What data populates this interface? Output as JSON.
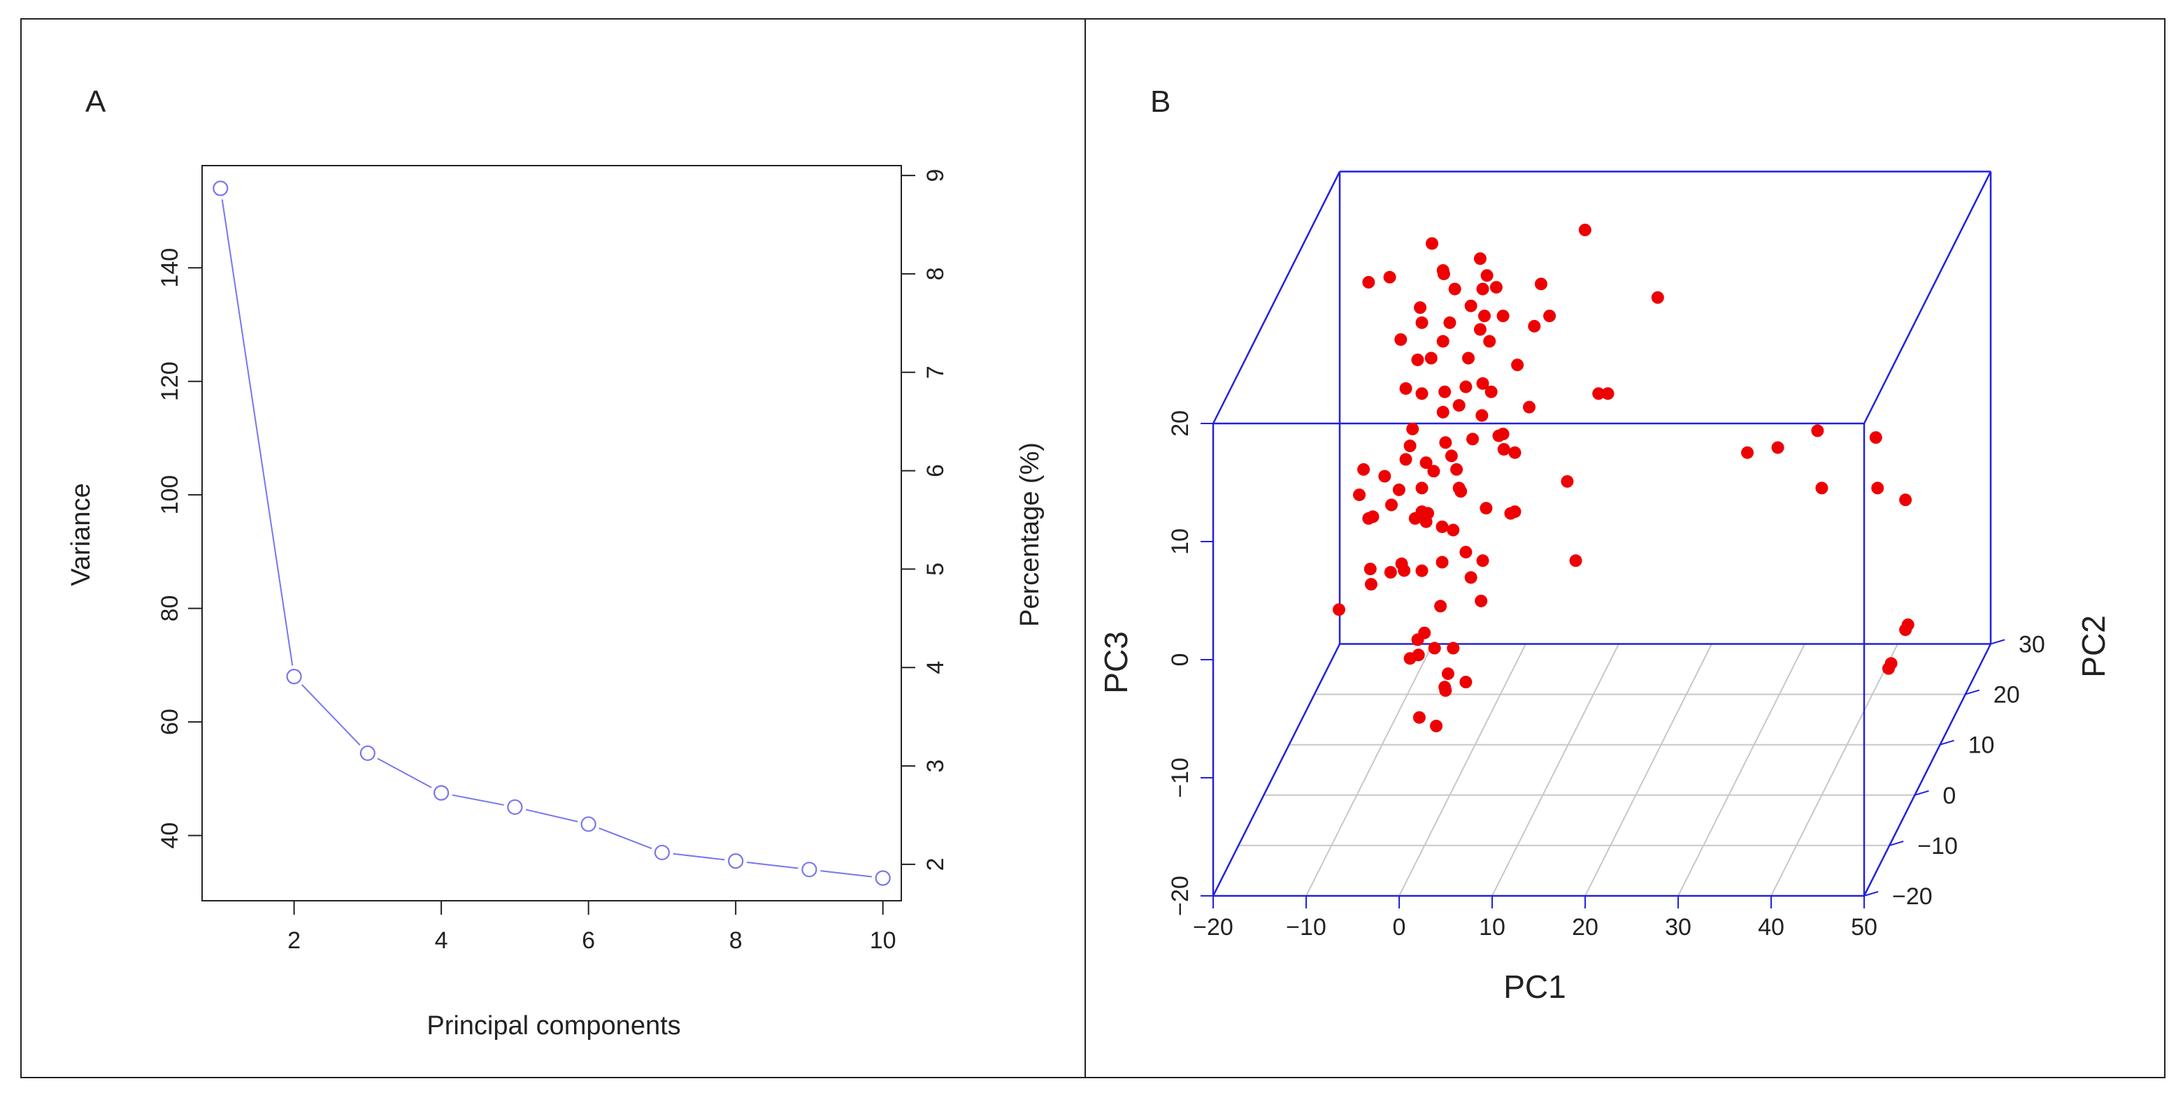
{
  "chart_data": [
    {
      "panel": "A",
      "type": "line",
      "title": "",
      "xlabel": "Principal components",
      "ylabel": "Variance",
      "ylabel_right": "Percentage (%)",
      "x": [
        1,
        2,
        3,
        4,
        5,
        6,
        7,
        8,
        9,
        10
      ],
      "series": [
        {
          "name": "Variance",
          "values": [
            154,
            68,
            54.5,
            47.5,
            45,
            42,
            37,
            35.5,
            34,
            32.5
          ]
        }
      ],
      "xlim": [
        0.75,
        10.25
      ],
      "ylim": [
        28.5,
        158
      ],
      "y2lim": [
        1.63,
        9.1
      ],
      "xticks": [
        2,
        4,
        6,
        8,
        10
      ],
      "yticks": [
        40,
        60,
        80,
        100,
        120,
        140
      ],
      "y2ticks": [
        2,
        3,
        4,
        5,
        6,
        7,
        8,
        9
      ],
      "marker": "open-circle",
      "color": "#7777ee"
    },
    {
      "panel": "B",
      "type": "scatter",
      "title": "",
      "xlabel": "PC1",
      "ylabel": "PC3",
      "zlabel": "PC2",
      "projection": "3d",
      "xlim": [
        -20,
        50
      ],
      "ylim": [
        -20,
        20
      ],
      "zlim": [
        -20,
        30
      ],
      "xticks": [
        "−20",
        "−10",
        "0",
        "10",
        "20",
        "30",
        "40",
        "50"
      ],
      "yticks": [
        "−20",
        "−10",
        "0",
        "10",
        "20"
      ],
      "zticks": [
        "−20",
        "−10",
        "0",
        "10",
        "20",
        "30"
      ],
      "box_color": "#2222dd",
      "point_color": "#ee0000",
      "points_pc1_pc3_pc2": [
        [
          -1,
          -11,
          3
        ],
        [
          -3,
          -13,
          -1
        ],
        [
          -1,
          -12,
          2
        ],
        [
          -2,
          -15,
          2
        ],
        [
          -4,
          -8,
          -1
        ],
        [
          -13,
          -6,
          4
        ],
        [
          0,
          -10,
          -2
        ],
        [
          2,
          -10,
          -1
        ],
        [
          -2,
          -6,
          -5
        ],
        [
          0,
          -5,
          -6
        ],
        [
          2,
          -5,
          -6
        ],
        [
          -1,
          -3,
          -9
        ],
        [
          -8,
          0,
          -2
        ],
        [
          -9,
          -3,
          2
        ],
        [
          0,
          -2,
          -10
        ],
        [
          5,
          -1,
          -6
        ],
        [
          2,
          -2,
          1
        ],
        [
          -3,
          2,
          -7
        ],
        [
          -5,
          1,
          -5
        ],
        [
          -9,
          3,
          1
        ],
        [
          -10,
          5,
          1
        ],
        [
          0,
          1,
          -3
        ],
        [
          -3,
          4,
          0
        ],
        [
          -8,
          4,
          -1
        ],
        [
          -6,
          5,
          2
        ],
        [
          -4,
          3,
          1
        ],
        [
          -2,
          4,
          -2
        ],
        [
          0,
          4,
          -3
        ],
        [
          -1,
          6,
          -5
        ],
        [
          2,
          5,
          -6
        ],
        [
          -3,
          6,
          0
        ],
        [
          -9,
          8,
          -1
        ],
        [
          -7,
          7,
          0
        ],
        [
          -5,
          8,
          1
        ],
        [
          -2,
          7,
          1
        ],
        [
          1,
          8,
          -1
        ],
        [
          2,
          7,
          -3
        ],
        [
          5,
          6,
          -4
        ],
        [
          -4,
          10,
          -1
        ],
        [
          -2,
          9,
          -2
        ],
        [
          1,
          10,
          -3
        ],
        [
          3,
          11,
          -2
        ],
        [
          6,
          11,
          -1
        ],
        [
          -4,
          11,
          0
        ],
        [
          -1,
          12,
          1
        ],
        [
          1,
          13,
          0
        ],
        [
          4,
          13,
          -2
        ],
        [
          -5,
          14,
          1
        ],
        [
          -3,
          14,
          0
        ],
        [
          0,
          15,
          -2
        ],
        [
          2,
          15,
          -1
        ],
        [
          5,
          15,
          -2
        ],
        [
          -4,
          16,
          2
        ],
        [
          -2,
          17,
          0
        ],
        [
          2,
          17,
          0
        ],
        [
          4,
          18,
          1
        ],
        [
          -1,
          18,
          1
        ],
        [
          3,
          19,
          1
        ],
        [
          -3,
          20,
          0
        ],
        [
          0,
          20,
          0
        ],
        [
          2,
          21,
          1
        ],
        [
          4,
          21,
          -1
        ],
        [
          -7,
          23,
          2
        ],
        [
          -9,
          23,
          1
        ],
        [
          0,
          22,
          2
        ],
        [
          3,
          22,
          2
        ],
        [
          5,
          23,
          0
        ],
        [
          -1,
          24,
          1
        ],
        [
          3,
          25,
          1
        ],
        [
          4,
          24,
          0
        ],
        [
          -3,
          25,
          4
        ],
        [
          -2,
          22,
          5
        ],
        [
          6,
          21,
          -1
        ],
        [
          7,
          16,
          1
        ],
        [
          8,
          12,
          2
        ],
        [
          7,
          9,
          0
        ],
        [
          5,
          8,
          3
        ],
        [
          7,
          4,
          0
        ],
        [
          13,
          -1,
          2
        ],
        [
          11,
          4,
          6
        ],
        [
          16,
          14,
          0
        ],
        [
          17,
          14,
          0
        ],
        [
          14,
          27,
          2
        ],
        [
          21,
          20,
          5
        ],
        [
          -3,
          3,
          -8
        ],
        [
          9,
          22,
          3
        ],
        [
          11,
          21,
          -1
        ],
        [
          -4,
          20,
          3
        ],
        [
          5,
          10,
          1
        ],
        [
          6,
          3,
          2
        ],
        [
          3,
          -1,
          2
        ],
        [
          -3,
          -1,
          0
        ],
        [
          -6,
          5,
          -1
        ],
        [
          1,
          6,
          0
        ],
        [
          -1,
          9,
          2
        ],
        [
          3,
          14,
          2
        ],
        [
          -5,
          19,
          -1
        ],
        [
          8,
          18,
          4
        ],
        [
          2,
          1,
          -1
        ],
        [
          -1,
          -4,
          0
        ],
        [
          32,
          9,
          0
        ],
        [
          35,
          9,
          1
        ],
        [
          39,
          10,
          2
        ],
        [
          40,
          6,
          0
        ],
        [
          45,
          9,
          3
        ],
        [
          46,
          6,
          0
        ],
        [
          49,
          5,
          0
        ],
        [
          49,
          -6,
          1
        ],
        [
          49,
          -6,
          0
        ],
        [
          48,
          -8,
          -3
        ],
        [
          48,
          -8,
          -2
        ]
      ]
    }
  ],
  "panels": {
    "a_label": "A",
    "b_label": "B"
  }
}
